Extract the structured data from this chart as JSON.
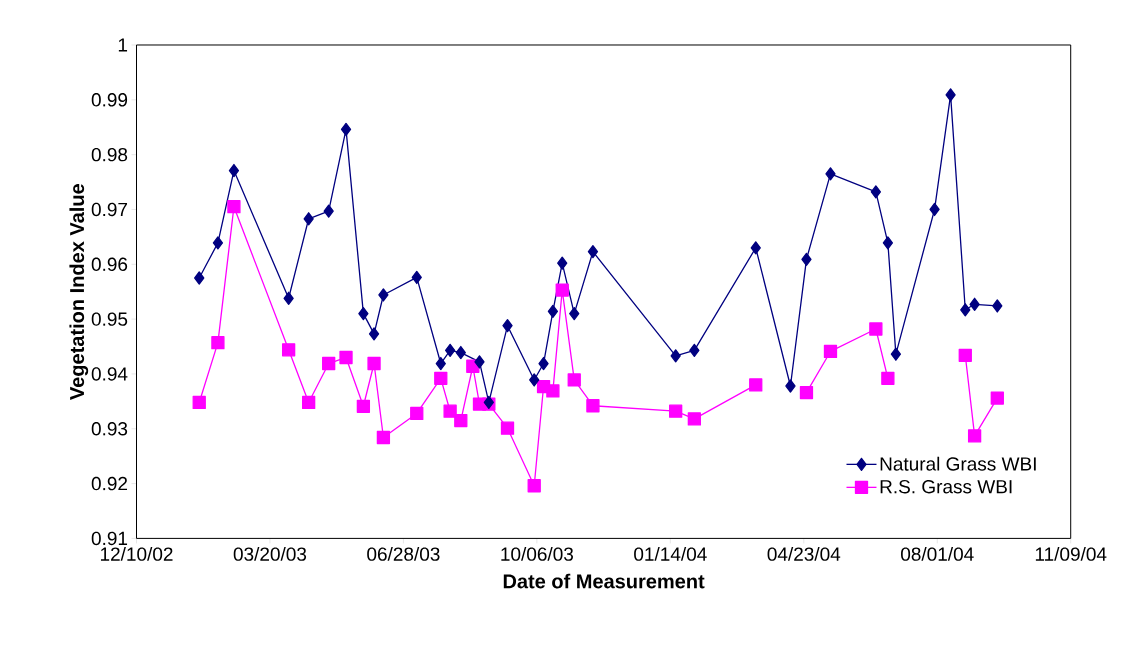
{
  "chart_data": {
    "type": "line",
    "xlabel": "Date of Measurement",
    "ylabel": "Vegetation Index Value",
    "xlim": [
      "2002-12-10",
      "2004-11-09"
    ],
    "xticks": [
      {
        "value": "2002-12-10",
        "label": "12/10/02"
      },
      {
        "value": "2003-03-20",
        "label": "03/20/03"
      },
      {
        "value": "2003-06-28",
        "label": "06/28/03"
      },
      {
        "value": "2003-10-06",
        "label": "10/06/03"
      },
      {
        "value": "2004-01-14",
        "label": "01/14/04"
      },
      {
        "value": "2004-04-23",
        "label": "04/23/04"
      },
      {
        "value": "2004-08-01",
        "label": "08/01/04"
      },
      {
        "value": "2004-11-09",
        "label": "11/09/04"
      }
    ],
    "ylim": [
      0.91,
      1
    ],
    "yticks": [
      0.91,
      0.92,
      0.93,
      0.94,
      0.95,
      0.96,
      0.97,
      0.98,
      0.99,
      1
    ],
    "legend": "bottom right",
    "line_style": "solid",
    "series": [
      {
        "name": "Natural Grass WBI",
        "color": "#000080",
        "marker": "diamond",
        "x": [
          "2003-01-26",
          "2003-02-09",
          "2003-02-21",
          "2003-04-03",
          "2003-04-18",
          "2003-05-03",
          "2003-05-16",
          "2003-05-29",
          "2003-06-06",
          "2003-06-13",
          "2003-07-08",
          "2003-07-26",
          "2003-08-02",
          "2003-08-10",
          "2003-08-24",
          "2003-08-31",
          "2003-09-14",
          "2003-10-04",
          "2003-10-11",
          "2003-10-18",
          "2003-10-25",
          "2003-11-03",
          "2003-11-17",
          "2004-01-18",
          "2004-02-01",
          "2004-03-18",
          "2004-04-13",
          "2004-04-25",
          "2004-05-13",
          "2004-06-16",
          "2004-06-25",
          "2004-07-01",
          "2004-07-30",
          "2004-08-11",
          "2004-08-22",
          "2004-08-29",
          "2004-09-15"
        ],
        "values": [
          0.9575,
          0.9639,
          0.9771,
          0.9538,
          0.9683,
          0.9697,
          0.9846,
          0.951,
          0.9473,
          0.9544,
          0.9576,
          0.9419,
          0.9443,
          0.9439,
          0.9422,
          0.9348,
          0.9488,
          0.9389,
          0.9419,
          0.9514,
          0.9602,
          0.951,
          0.9623,
          0.9433,
          0.9443,
          0.963,
          0.9378,
          0.9609,
          0.9765,
          0.9732,
          0.9639,
          0.9436,
          0.97,
          0.9909,
          0.9517,
          0.9527,
          0.9524
        ]
      },
      {
        "name": "R.S. Grass WBI",
        "color": "#ff00ff",
        "marker": "square",
        "x": [
          "2003-01-26",
          "2003-02-09",
          "2003-02-21",
          "2003-04-03",
          "2003-04-18",
          "2003-05-03",
          "2003-05-16",
          "2003-05-29",
          "2003-06-06",
          "2003-06-13",
          "2003-07-08",
          "2003-07-26",
          "2003-08-02",
          "2003-08-10",
          "2003-08-19",
          "2003-08-24",
          "2003-08-31",
          "2003-09-14",
          "2003-10-04",
          "2003-10-11",
          "2003-10-18",
          "2003-10-25",
          "2003-11-03",
          "2003-11-17",
          "2004-01-18",
          "2004-02-01",
          "2004-03-18",
          "2004-04-13",
          "2004-04-25",
          "2004-05-13",
          "2004-06-16",
          "2004-06-25",
          "2004-07-01",
          "2004-07-30",
          "2004-08-11",
          "2004-08-22",
          "2004-08-29",
          "2004-09-15"
        ],
        "values": [
          0.9348,
          0.9457,
          0.9705,
          0.9444,
          0.9348,
          0.9419,
          0.943,
          0.9341,
          0.9419,
          0.9284,
          0.9328,
          0.9392,
          0.9332,
          0.9315,
          0.9414,
          0.9345,
          0.9345,
          0.9301,
          0.9196,
          0.9377,
          0.9369,
          0.9553,
          0.9389,
          0.9342,
          0.9332,
          0.9318,
          0.938,
          null,
          0.9366,
          0.9441,
          0.9482,
          0.9392,
          null,
          null,
          null,
          0.9434,
          0.9287,
          0.9356
        ]
      }
    ]
  }
}
